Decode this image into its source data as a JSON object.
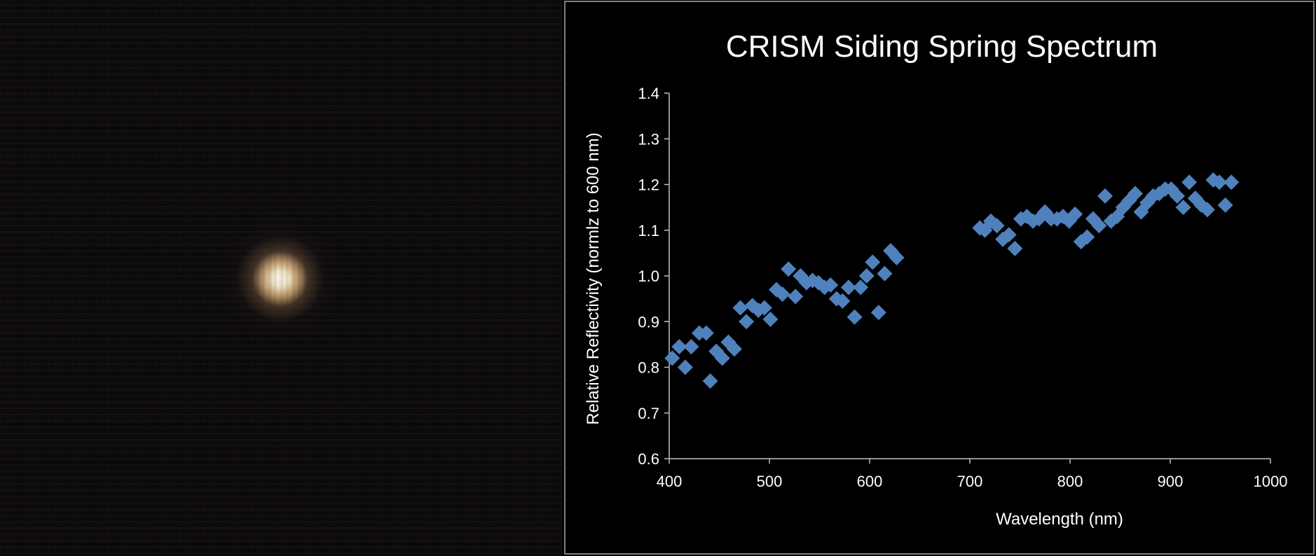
{
  "chart_data": {
    "type": "scatter",
    "title": "CRISM Siding Spring Spectrum",
    "xlabel": "Wavelength (nm)",
    "ylabel": "Relative Reflectivity (normlz to 600 nm)",
    "xlim": [
      400,
      1000
    ],
    "ylim": [
      0.6,
      1.4
    ],
    "xticks": [
      "400",
      "500",
      "600",
      "700",
      "800",
      "900",
      "1000"
    ],
    "yticks": [
      "0.6",
      "0.7",
      "0.8",
      "0.9",
      "1.0",
      "1.1",
      "1.2",
      "1.3",
      "1.4"
    ],
    "grid": false,
    "marker": "diamond",
    "color": "#4f81bd",
    "series": [
      {
        "points": [
          [
            403,
            0.82
          ],
          [
            410,
            0.845
          ],
          [
            416,
            0.8
          ],
          [
            422,
            0.845
          ],
          [
            430,
            0.875
          ],
          [
            437,
            0.875
          ],
          [
            441,
            0.77
          ],
          [
            447,
            0.835
          ],
          [
            453,
            0.82
          ],
          [
            459,
            0.855
          ],
          [
            465,
            0.84
          ],
          [
            471,
            0.93
          ],
          [
            477,
            0.9
          ],
          [
            483,
            0.935
          ],
          [
            489,
            0.925
          ],
          [
            495,
            0.93
          ],
          [
            501,
            0.905
          ],
          [
            507,
            0.97
          ],
          [
            513,
            0.96
          ],
          [
            519,
            1.015
          ],
          [
            526,
            0.955
          ],
          [
            531,
            1.0
          ],
          [
            537,
            0.985
          ],
          [
            543,
            0.99
          ],
          [
            549,
            0.985
          ],
          [
            555,
            0.975
          ],
          [
            561,
            0.98
          ],
          [
            567,
            0.95
          ],
          [
            573,
            0.945
          ],
          [
            579,
            0.975
          ],
          [
            585,
            0.91
          ],
          [
            591,
            0.975
          ],
          [
            597,
            1.0
          ],
          [
            603,
            1.03
          ],
          [
            609,
            0.92
          ],
          [
            615,
            1.005
          ],
          [
            621,
            1.055
          ],
          [
            627,
            1.04
          ],
          [
            710,
            1.105
          ],
          [
            715,
            1.1
          ],
          [
            721,
            1.12
          ],
          [
            727,
            1.11
          ],
          [
            733,
            1.08
          ],
          [
            739,
            1.09
          ],
          [
            745,
            1.06
          ],
          [
            751,
            1.125
          ],
          [
            757,
            1.13
          ],
          [
            763,
            1.12
          ],
          [
            769,
            1.125
          ],
          [
            775,
            1.14
          ],
          [
            781,
            1.125
          ],
          [
            787,
            1.125
          ],
          [
            793,
            1.13
          ],
          [
            799,
            1.12
          ],
          [
            805,
            1.135
          ],
          [
            811,
            1.075
          ],
          [
            817,
            1.085
          ],
          [
            823,
            1.125
          ],
          [
            829,
            1.11
          ],
          [
            835,
            1.175
          ],
          [
            841,
            1.12
          ],
          [
            847,
            1.13
          ],
          [
            853,
            1.15
          ],
          [
            859,
            1.165
          ],
          [
            865,
            1.18
          ],
          [
            871,
            1.14
          ],
          [
            877,
            1.16
          ],
          [
            883,
            1.175
          ],
          [
            889,
            1.18
          ],
          [
            895,
            1.19
          ],
          [
            901,
            1.19
          ],
          [
            907,
            1.175
          ],
          [
            913,
            1.15
          ],
          [
            919,
            1.205
          ],
          [
            925,
            1.17
          ],
          [
            931,
            1.155
          ],
          [
            937,
            1.145
          ],
          [
            943,
            1.21
          ],
          [
            949,
            1.205
          ],
          [
            955,
            1.155
          ],
          [
            961,
            1.205
          ]
        ]
      }
    ]
  }
}
